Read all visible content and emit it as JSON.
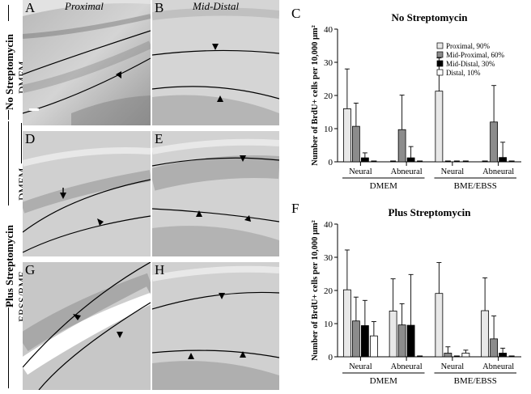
{
  "panels": {
    "A": {
      "label": "A",
      "title": "Proximal"
    },
    "B": {
      "label": "B",
      "title": "Mid-Distal"
    },
    "D": {
      "label": "D"
    },
    "E": {
      "label": "E"
    },
    "G": {
      "label": "G"
    },
    "H": {
      "label": "H"
    }
  },
  "side_labels": {
    "top_group": "No Streptomycin",
    "top_medium": "DMEM",
    "bottom_group": "Plus Streptomycin",
    "mid_medium": "DMEM",
    "bottom_medium": "EBSS/BME"
  },
  "chart_data": [
    {
      "panel_label": "C",
      "type": "bar",
      "title": "No Streptomycin",
      "ylabel": "Number of BrdU+ cells per 10,000 μm²",
      "ylim": [
        0,
        40
      ],
      "yticks": [
        0,
        10,
        20,
        30,
        40
      ],
      "categories": [
        "Neural",
        "Abneural",
        "Neural",
        "Abneural"
      ],
      "groups": [
        {
          "label": "DMEM",
          "categories": [
            0,
            1
          ]
        },
        {
          "label": "BME/EBSS",
          "categories": [
            2,
            3
          ]
        }
      ],
      "series": [
        {
          "name": "Proximal, 90%",
          "color": "#e8e8e8",
          "values": [
            16,
            0,
            21.3,
            0
          ],
          "errors": [
            12,
            0,
            10,
            0
          ]
        },
        {
          "name": "Mid-Proximal, 60%",
          "color": "#8c8c8c",
          "values": [
            10.7,
            9.7,
            0,
            12
          ],
          "errors": [
            7,
            10.4,
            0,
            11
          ]
        },
        {
          "name": "Mid-Distal, 30%",
          "color": "#000000",
          "values": [
            1.2,
            1.2,
            0,
            1.3
          ],
          "errors": [
            1.5,
            3.4,
            0,
            4.6
          ]
        },
        {
          "name": "Distal, 10%",
          "color": "#ffffff",
          "values": [
            0,
            0,
            0,
            0
          ],
          "errors": [
            0,
            0,
            0,
            0
          ]
        }
      ]
    },
    {
      "panel_label": "F",
      "type": "bar",
      "title": "Plus Streptomycin",
      "ylabel": "Number of BrdU+ cells per 10,000 μm²",
      "ylim": [
        0,
        40
      ],
      "yticks": [
        0,
        10,
        20,
        30,
        40
      ],
      "categories": [
        "Neural",
        "Abneural",
        "Neural",
        "Abneural"
      ],
      "groups": [
        {
          "label": "DMEM",
          "categories": [
            0,
            1
          ]
        },
        {
          "label": "BME/EBSS",
          "categories": [
            2,
            3
          ]
        }
      ],
      "series": [
        {
          "name": "Proximal, 90%",
          "color": "#e8e8e8",
          "values": [
            20.2,
            13.8,
            19.1,
            13.9
          ],
          "errors": [
            12,
            9.7,
            9.3,
            9.9
          ]
        },
        {
          "name": "Mid-Proximal, 60%",
          "color": "#8c8c8c",
          "values": [
            10.8,
            9.6,
            1.1,
            5.4
          ],
          "errors": [
            7.2,
            6.4,
            1.9,
            6.9
          ]
        },
        {
          "name": "Mid-Distal, 30%",
          "color": "#000000",
          "values": [
            9.4,
            9.5,
            0,
            1.1
          ],
          "errors": [
            7.6,
            15.3,
            0,
            1.5
          ]
        },
        {
          "name": "Distal, 10%",
          "color": "#ffffff",
          "values": [
            6.3,
            0,
            1.1,
            0
          ],
          "errors": [
            4.3,
            0,
            0.9,
            0
          ]
        }
      ]
    }
  ]
}
